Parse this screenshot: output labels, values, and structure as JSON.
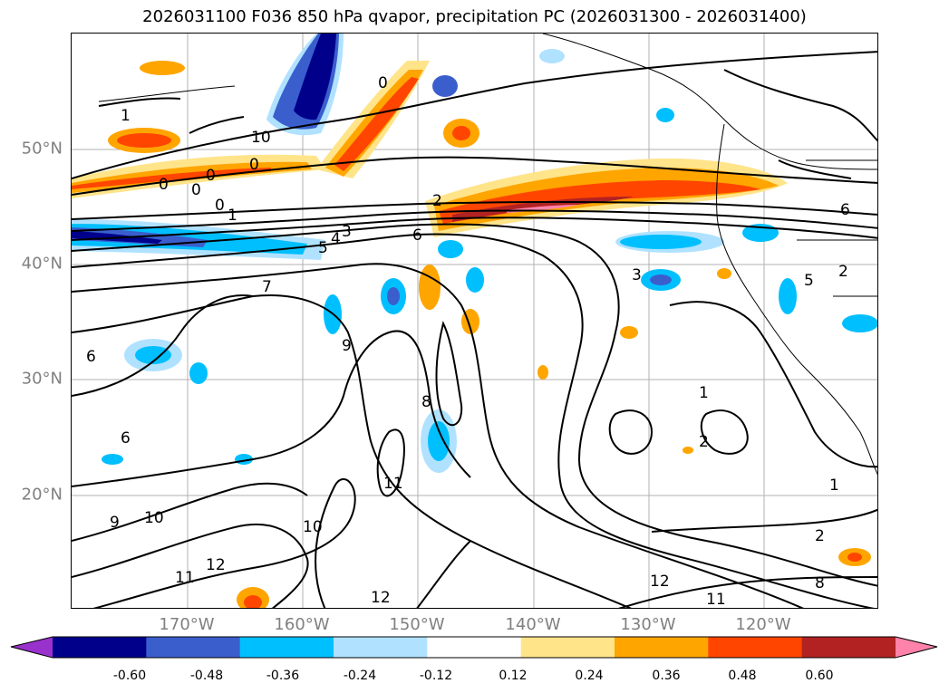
{
  "figure": {
    "title": "2026031100 F036 850 hPa qvapor, precipitation PC (2026031300 - 2026031400)"
  },
  "axes": {
    "lat_labels": [
      "50°N",
      "40°N",
      "30°N",
      "20°N"
    ],
    "lon_labels": [
      "170°W",
      "160°W",
      "150°W",
      "140°W",
      "130°W",
      "120°W"
    ]
  },
  "contour_labels": [
    "1",
    "10",
    "0",
    "0",
    "0",
    "0",
    "0",
    "1",
    "2",
    "3",
    "4",
    "5",
    "6",
    "7",
    "9",
    "6",
    "8",
    "6",
    "11",
    "9",
    "10",
    "10",
    "11",
    "12",
    "12",
    "11",
    "12",
    "8",
    "2",
    "1",
    "1",
    "2",
    "3",
    "5",
    "2",
    "6",
    "0"
  ],
  "colorbar": {
    "tick_labels": [
      "-0.60",
      "-0.48",
      "-0.36",
      "-0.24",
      "-0.12",
      "0.12",
      "0.24",
      "0.36",
      "0.48",
      "0.60"
    ],
    "colors": [
      "#9932cc",
      "#00008b",
      "#3a5fcd",
      "#00bfff",
      "#b0e2ff",
      "#ffffff",
      "#ffe48a",
      "#ffa500",
      "#ff4500",
      "#b22222",
      "#ff82ab"
    ]
  }
}
